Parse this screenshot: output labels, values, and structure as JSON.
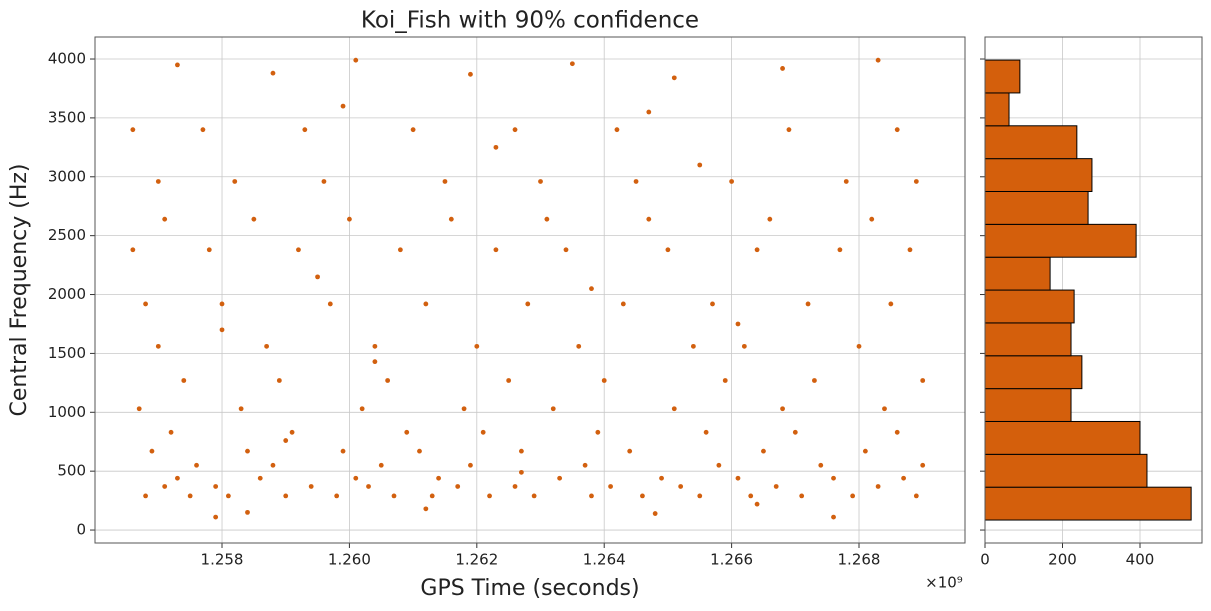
{
  "chart_data": [
    {
      "type": "scatter",
      "title": "Koi_Fish with 90% confidence",
      "xlabel": "GPS Time (seconds)",
      "ylabel": "Central Frequency (Hz)",
      "x_offset_label": "×10⁹",
      "color": "#d2600f",
      "grid": true,
      "xlim": [
        1.256006,
        1.269664
      ],
      "ylim": [
        -110,
        4187
      ],
      "xticks": [
        {
          "value": 1.258,
          "label": "1.258"
        },
        {
          "value": 1.26,
          "label": "1.260"
        },
        {
          "value": 1.262,
          "label": "1.262"
        },
        {
          "value": 1.264,
          "label": "1.264"
        },
        {
          "value": 1.266,
          "label": "1.266"
        },
        {
          "value": 1.268,
          "label": "1.268"
        }
      ],
      "yticks": [
        0,
        500,
        1000,
        1500,
        2000,
        2500,
        3000,
        3500,
        4000
      ],
      "x": [
        1.2568,
        1.2575,
        1.2581,
        1.259,
        1.2598,
        1.2607,
        1.2613,
        1.2622,
        1.2629,
        1.2638,
        1.2646,
        1.2655,
        1.2663,
        1.2671,
        1.2679,
        1.2689,
        1.2571,
        1.2579,
        1.2594,
        1.2603,
        1.2617,
        1.2626,
        1.2641,
        1.2652,
        1.2667,
        1.2683,
        1.2573,
        1.2586,
        1.2601,
        1.2614,
        1.2633,
        1.2649,
        1.2661,
        1.2676,
        1.2687,
        1.2576,
        1.2588,
        1.2605,
        1.2619,
        1.2637,
        1.2658,
        1.2674,
        1.269,
        1.2569,
        1.2584,
        1.2599,
        1.2611,
        1.2627,
        1.2644,
        1.2665,
        1.2681,
        1.2572,
        1.2591,
        1.2609,
        1.2621,
        1.2639,
        1.2656,
        1.267,
        1.2686,
        1.2567,
        1.2583,
        1.2602,
        1.2618,
        1.2632,
        1.2651,
        1.2668,
        1.2684,
        1.2574,
        1.2589,
        1.2606,
        1.2625,
        1.264,
        1.2659,
        1.2673,
        1.269,
        1.257,
        1.2587,
        1.2604,
        1.262,
        1.2636,
        1.2654,
        1.2662,
        1.268,
        1.2568,
        1.258,
        1.2597,
        1.2612,
        1.2628,
        1.2643,
        1.2657,
        1.2672,
        1.2685,
        1.2566,
        1.2578,
        1.2592,
        1.2608,
        1.2623,
        1.2634,
        1.265,
        1.2664,
        1.2677,
        1.2688,
        1.2571,
        1.2585,
        1.26,
        1.2616,
        1.2631,
        1.2647,
        1.2666,
        1.2682,
        1.257,
        1.2582,
        1.2596,
        1.2615,
        1.263,
        1.2645,
        1.266,
        1.2678,
        1.2689,
        1.2566,
        1.2577,
        1.2593,
        1.261,
        1.2626,
        1.2642,
        1.2669,
        1.2686,
        1.2573,
        1.2588,
        1.2601,
        1.2619,
        1.2635,
        1.2651,
        1.2668,
        1.2683,
        1.2579,
        1.2584,
        1.2612,
        1.2648,
        1.2676,
        1.2595,
        1.2638,
        1.2661,
        1.2604,
        1.2655,
        1.2623,
        1.258,
        1.259,
        1.2627,
        1.2664,
        1.2599,
        1.2647
      ],
      "values": [
        290,
        290,
        290,
        290,
        290,
        290,
        290,
        290,
        290,
        290,
        290,
        290,
        290,
        290,
        290,
        290,
        370,
        370,
        370,
        370,
        370,
        370,
        370,
        370,
        370,
        370,
        440,
        440,
        440,
        440,
        440,
        440,
        440,
        440,
        440,
        550,
        550,
        550,
        550,
        550,
        550,
        550,
        550,
        670,
        670,
        670,
        670,
        670,
        670,
        670,
        670,
        830,
        830,
        830,
        830,
        830,
        830,
        830,
        830,
        1030,
        1030,
        1030,
        1030,
        1030,
        1030,
        1030,
        1030,
        1270,
        1270,
        1270,
        1270,
        1270,
        1270,
        1270,
        1270,
        1560,
        1560,
        1560,
        1560,
        1560,
        1560,
        1560,
        1560,
        1920,
        1920,
        1920,
        1920,
        1920,
        1920,
        1920,
        1920,
        1920,
        2380,
        2380,
        2380,
        2380,
        2380,
        2380,
        2380,
        2380,
        2380,
        2380,
        2640,
        2640,
        2640,
        2640,
        2640,
        2640,
        2640,
        2640,
        2960,
        2960,
        2960,
        2960,
        2960,
        2960,
        2960,
        2960,
        2960,
        3400,
        3400,
        3400,
        3400,
        3400,
        3400,
        3400,
        3400,
        3950,
        3880,
        3990,
        3870,
        3960,
        3840,
        3920,
        3990,
        110,
        150,
        180,
        140,
        110,
        2150,
        2050,
        1750,
        1430,
        3100,
        3250,
        1700,
        760,
        490,
        220,
        3600,
        3550
      ]
    },
    {
      "type": "histogram",
      "orientation": "horizontal",
      "color": "#d45f0c",
      "edgecolor": "#000000",
      "grid": true,
      "bins": [
        85,
        364,
        643,
        922,
        1201,
        1480,
        1759,
        2038,
        2317,
        2596,
        2875,
        3154,
        3433,
        3712,
        3991
      ],
      "values": [
        532,
        418,
        400,
        222,
        250,
        222,
        230,
        168,
        390,
        266,
        276,
        237,
        62,
        90
      ],
      "xlim": [
        0,
        560
      ],
      "xticks": [
        0,
        200,
        400
      ],
      "ylim": [
        -110,
        4187
      ],
      "yticks": [
        0,
        500,
        1000,
        1500,
        2000,
        2500,
        3000,
        3500,
        4000
      ]
    }
  ]
}
